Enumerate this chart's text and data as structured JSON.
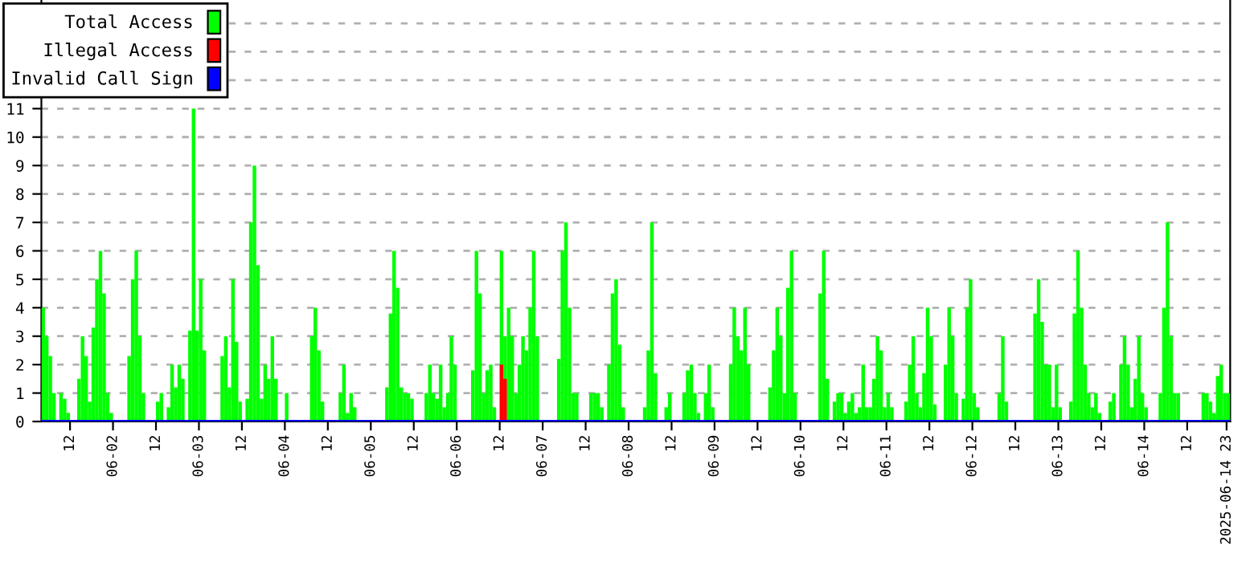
{
  "chart_data": {
    "type": "bar",
    "legend": "top left",
    "grid": "y",
    "xlim": [
      "2025-06-01T04:00",
      "2025-06-15T00:00"
    ],
    "ylim": [
      0,
      14.8
    ],
    "yticks": [
      0,
      1,
      2,
      3,
      4,
      5,
      6,
      7,
      8,
      9,
      10,
      11,
      {
        "value": 12,
        "label": null
      },
      {
        "value": 13,
        "label": null
      },
      {
        "value": 14,
        "label": null
      }
    ],
    "xticks": [
      {
        "value": "2025-06-01T12:00",
        "label": "12"
      },
      {
        "value": "2025-06-02T00:00",
        "label": "06-02"
      },
      {
        "value": "2025-06-02T12:00",
        "label": "12"
      },
      {
        "value": "2025-06-03T00:00",
        "label": "06-03"
      },
      {
        "value": "2025-06-03T12:00",
        "label": "12"
      },
      {
        "value": "2025-06-04T00:00",
        "label": "06-04"
      },
      {
        "value": "2025-06-04T12:00",
        "label": "12"
      },
      {
        "value": "2025-06-05T00:00",
        "label": "06-05"
      },
      {
        "value": "2025-06-05T12:00",
        "label": "12"
      },
      {
        "value": "2025-06-06T00:00",
        "label": "06-06"
      },
      {
        "value": "2025-06-06T12:00",
        "label": "12"
      },
      {
        "value": "2025-06-07T00:00",
        "label": "06-07"
      },
      {
        "value": "2025-06-07T12:00",
        "label": "12"
      },
      {
        "value": "2025-06-08T00:00",
        "label": "06-08"
      },
      {
        "value": "2025-06-08T12:00",
        "label": "12"
      },
      {
        "value": "2025-06-09T00:00",
        "label": "06-09"
      },
      {
        "value": "2025-06-09T12:00",
        "label": "12"
      },
      {
        "value": "2025-06-10T00:00",
        "label": "06-10"
      },
      {
        "value": "2025-06-10T12:00",
        "label": "12"
      },
      {
        "value": "2025-06-11T00:00",
        "label": "06-11"
      },
      {
        "value": "2025-06-11T12:00",
        "label": "12"
      },
      {
        "value": "2025-06-12T00:00",
        "label": "06-12"
      },
      {
        "value": "2025-06-12T12:00",
        "label": "12"
      },
      {
        "value": "2025-06-13T00:00",
        "label": "06-13"
      },
      {
        "value": "2025-06-13T12:00",
        "label": "12"
      },
      {
        "value": "2025-06-14T00:00",
        "label": "06-14"
      },
      {
        "value": "2025-06-14T12:00",
        "label": "12"
      },
      {
        "value": "2025-06-14T23:00",
        "label": "2025-06-14 23"
      }
    ],
    "series": [
      {
        "name": "Total Access",
        "color": "#00ff00",
        "x": [
          "2025-06-01T04:00",
          "2025-06-01T05:00",
          "2025-06-01T06:00",
          "2025-06-01T07:00",
          "2025-06-01T09:00",
          "2025-06-01T10:00",
          "2025-06-01T11:00",
          "2025-06-01T14:00",
          "2025-06-01T15:00",
          "2025-06-01T16:00",
          "2025-06-01T17:00",
          "2025-06-01T18:00",
          "2025-06-01T19:00",
          "2025-06-01T20:00",
          "2025-06-01T21:00",
          "2025-06-01T22:00",
          "2025-06-01T23:00",
          "2025-06-02T04:00",
          "2025-06-02T05:00",
          "2025-06-02T06:00",
          "2025-06-02T07:00",
          "2025-06-02T08:00",
          "2025-06-02T12:00",
          "2025-06-02T13:00",
          "2025-06-02T15:00",
          "2025-06-02T16:00",
          "2025-06-02T17:00",
          "2025-06-02T18:00",
          "2025-06-02T19:00",
          "2025-06-02T21:00",
          "2025-06-02T22:00",
          "2025-06-02T23:00",
          "2025-06-03T00:00",
          "2025-06-03T01:00",
          "2025-06-03T06:00",
          "2025-06-03T07:00",
          "2025-06-03T08:00",
          "2025-06-03T09:00",
          "2025-06-03T10:00",
          "2025-06-03T11:00",
          "2025-06-03T13:00",
          "2025-06-03T14:00",
          "2025-06-03T15:00",
          "2025-06-03T16:00",
          "2025-06-03T17:00",
          "2025-06-03T18:00",
          "2025-06-03T19:00",
          "2025-06-03T20:00",
          "2025-06-03T21:00",
          "2025-06-04T00:00",
          "2025-06-04T07:00",
          "2025-06-04T08:00",
          "2025-06-04T09:00",
          "2025-06-04T10:00",
          "2025-06-04T15:00",
          "2025-06-04T16:00",
          "2025-06-04T17:00",
          "2025-06-04T18:00",
          "2025-06-04T19:00",
          "2025-06-05T04:00",
          "2025-06-05T05:00",
          "2025-06-05T06:00",
          "2025-06-05T07:00",
          "2025-06-05T08:00",
          "2025-06-05T09:00",
          "2025-06-05T10:00",
          "2025-06-05T11:00",
          "2025-06-05T15:00",
          "2025-06-05T16:00",
          "2025-06-05T17:00",
          "2025-06-05T18:00",
          "2025-06-05T19:00",
          "2025-06-05T20:00",
          "2025-06-05T21:00",
          "2025-06-05T22:00",
          "2025-06-05T23:00",
          "2025-06-06T04:00",
          "2025-06-06T05:00",
          "2025-06-06T06:00",
          "2025-06-06T07:00",
          "2025-06-06T08:00",
          "2025-06-06T09:00",
          "2025-06-06T10:00",
          "2025-06-06T12:00",
          "2025-06-06T13:00",
          "2025-06-06T14:00",
          "2025-06-06T15:00",
          "2025-06-06T16:00",
          "2025-06-06T17:00",
          "2025-06-06T18:00",
          "2025-06-06T19:00",
          "2025-06-06T20:00",
          "2025-06-06T21:00",
          "2025-06-06T22:00",
          "2025-06-07T04:00",
          "2025-06-07T05:00",
          "2025-06-07T06:00",
          "2025-06-07T07:00",
          "2025-06-07T08:00",
          "2025-06-07T09:00",
          "2025-06-07T13:00",
          "2025-06-07T14:00",
          "2025-06-07T15:00",
          "2025-06-07T16:00",
          "2025-06-07T18:00",
          "2025-06-07T19:00",
          "2025-06-07T20:00",
          "2025-06-07T21:00",
          "2025-06-07T22:00",
          "2025-06-08T04:00",
          "2025-06-08T05:00",
          "2025-06-08T06:00",
          "2025-06-08T07:00",
          "2025-06-08T10:00",
          "2025-06-08T11:00",
          "2025-06-08T15:00",
          "2025-06-08T16:00",
          "2025-06-08T17:00",
          "2025-06-08T18:00",
          "2025-06-08T19:00",
          "2025-06-08T21:00",
          "2025-06-08T22:00",
          "2025-06-08T23:00",
          "2025-06-09T04:00",
          "2025-06-09T05:00",
          "2025-06-09T06:00",
          "2025-06-09T07:00",
          "2025-06-09T08:00",
          "2025-06-09T09:00",
          "2025-06-09T15:00",
          "2025-06-09T16:00",
          "2025-06-09T17:00",
          "2025-06-09T18:00",
          "2025-06-09T19:00",
          "2025-06-09T20:00",
          "2025-06-09T21:00",
          "2025-06-09T22:00",
          "2025-06-10T05:00",
          "2025-06-10T06:00",
          "2025-06-10T07:00",
          "2025-06-10T09:00",
          "2025-06-10T10:00",
          "2025-06-10T11:00",
          "2025-06-10T12:00",
          "2025-06-10T13:00",
          "2025-06-10T14:00",
          "2025-06-10T15:00",
          "2025-06-10T16:00",
          "2025-06-10T17:00",
          "2025-06-10T18:00",
          "2025-06-10T19:00",
          "2025-06-10T20:00",
          "2025-06-10T21:00",
          "2025-06-10T22:00",
          "2025-06-10T23:00",
          "2025-06-11T00:00",
          "2025-06-11T01:00",
          "2025-06-11T05:00",
          "2025-06-11T06:00",
          "2025-06-11T07:00",
          "2025-06-11T08:00",
          "2025-06-11T09:00",
          "2025-06-11T10:00",
          "2025-06-11T11:00",
          "2025-06-11T12:00",
          "2025-06-11T13:00",
          "2025-06-11T16:00",
          "2025-06-11T17:00",
          "2025-06-11T18:00",
          "2025-06-11T19:00",
          "2025-06-11T21:00",
          "2025-06-11T22:00",
          "2025-06-11T23:00",
          "2025-06-12T00:00",
          "2025-06-12T01:00",
          "2025-06-12T07:00",
          "2025-06-12T08:00",
          "2025-06-12T09:00",
          "2025-06-12T17:00",
          "2025-06-12T18:00",
          "2025-06-12T19:00",
          "2025-06-12T20:00",
          "2025-06-12T21:00",
          "2025-06-12T22:00",
          "2025-06-12T23:00",
          "2025-06-13T00:00",
          "2025-06-13T03:00",
          "2025-06-13T04:00",
          "2025-06-13T05:00",
          "2025-06-13T06:00",
          "2025-06-13T07:00",
          "2025-06-13T08:00",
          "2025-06-13T09:00",
          "2025-06-13T10:00",
          "2025-06-13T11:00",
          "2025-06-13T14:00",
          "2025-06-13T15:00",
          "2025-06-13T17:00",
          "2025-06-13T18:00",
          "2025-06-13T19:00",
          "2025-06-13T20:00",
          "2025-06-13T21:00",
          "2025-06-13T22:00",
          "2025-06-13T23:00",
          "2025-06-14T00:00",
          "2025-06-14T04:00",
          "2025-06-14T05:00",
          "2025-06-14T06:00",
          "2025-06-14T07:00",
          "2025-06-14T08:00",
          "2025-06-14T09:00",
          "2025-06-14T16:00",
          "2025-06-14T17:00",
          "2025-06-14T18:00",
          "2025-06-14T19:00",
          "2025-06-14T20:00",
          "2025-06-14T21:00",
          "2025-06-14T22:00",
          "2025-06-14T23:00"
        ],
        "values": [
          4,
          3,
          2.3,
          1,
          1,
          0.8,
          0.3,
          1.5,
          3,
          2.3,
          0.7,
          3.3,
          5,
          6,
          4.5,
          1,
          0.3,
          2.3,
          5,
          6,
          3,
          1,
          0.7,
          1,
          0.5,
          2,
          1.2,
          2,
          1.5,
          3.2,
          11,
          3.2,
          5,
          2.5,
          2.3,
          3,
          1.2,
          5,
          2.8,
          0.7,
          0.8,
          7,
          9,
          5.5,
          0.8,
          2,
          1.5,
          3,
          1.5,
          1,
          3,
          4,
          2.5,
          0.7,
          1,
          2,
          0.3,
          1,
          0.5,
          1.2,
          3.8,
          6,
          4.7,
          1.2,
          1,
          1,
          0.8,
          1,
          2,
          1,
          0.8,
          2,
          0.5,
          1,
          3,
          2,
          1.8,
          6,
          4.5,
          1,
          1.8,
          2,
          0.5,
          6,
          3,
          4,
          3,
          1,
          2,
          3,
          2.5,
          4,
          6,
          3,
          2.2,
          6,
          7,
          4,
          1,
          1,
          1,
          1,
          1,
          0.5,
          2,
          4.5,
          5,
          2.7,
          0.5,
          0.5,
          2.5,
          7,
          1.7,
          0.5,
          1,
          1,
          1.8,
          2,
          1,
          0.3,
          1,
          2,
          0.5,
          2,
          4,
          3,
          2.5,
          4,
          2,
          1.2,
          2.5,
          4,
          3,
          1,
          4.7,
          6,
          1,
          4.5,
          6,
          1.5,
          0.7,
          1,
          1,
          0.3,
          0.7,
          1,
          0.3,
          0.5,
          2,
          0.5,
          0.5,
          1.5,
          3,
          2.5,
          0.5,
          1,
          0.5,
          0.7,
          2,
          3,
          1,
          0.5,
          1.7,
          4,
          3,
          0.6,
          2,
          4,
          3,
          1,
          0.8,
          4,
          5,
          1,
          0.5,
          1,
          3,
          0.7,
          3.8,
          5,
          3.5,
          2,
          2,
          0.5,
          2,
          0.5,
          0.7,
          3.8,
          6,
          4,
          2,
          1,
          0.5,
          1,
          0.3,
          0.7,
          1,
          2,
          3,
          2,
          0.5,
          1.5,
          3,
          1,
          0.5,
          1,
          4,
          7,
          3,
          1,
          1,
          1,
          1,
          0.7,
          0.3,
          1.6,
          2,
          1,
          1
        ]
      },
      {
        "name": "Illegal Access",
        "color": "#ff0000",
        "type": "bar",
        "x": [
          "2025-06-06T12:00",
          "2025-06-06T13:00"
        ],
        "values": [
          2,
          1.5
        ]
      },
      {
        "name": "Invalid Call Sign",
        "color": "#0000ff",
        "type": "line",
        "x": [
          "2025-06-01T04:00",
          "2025-06-15T00:00"
        ],
        "values": [
          0,
          0
        ]
      }
    ]
  }
}
